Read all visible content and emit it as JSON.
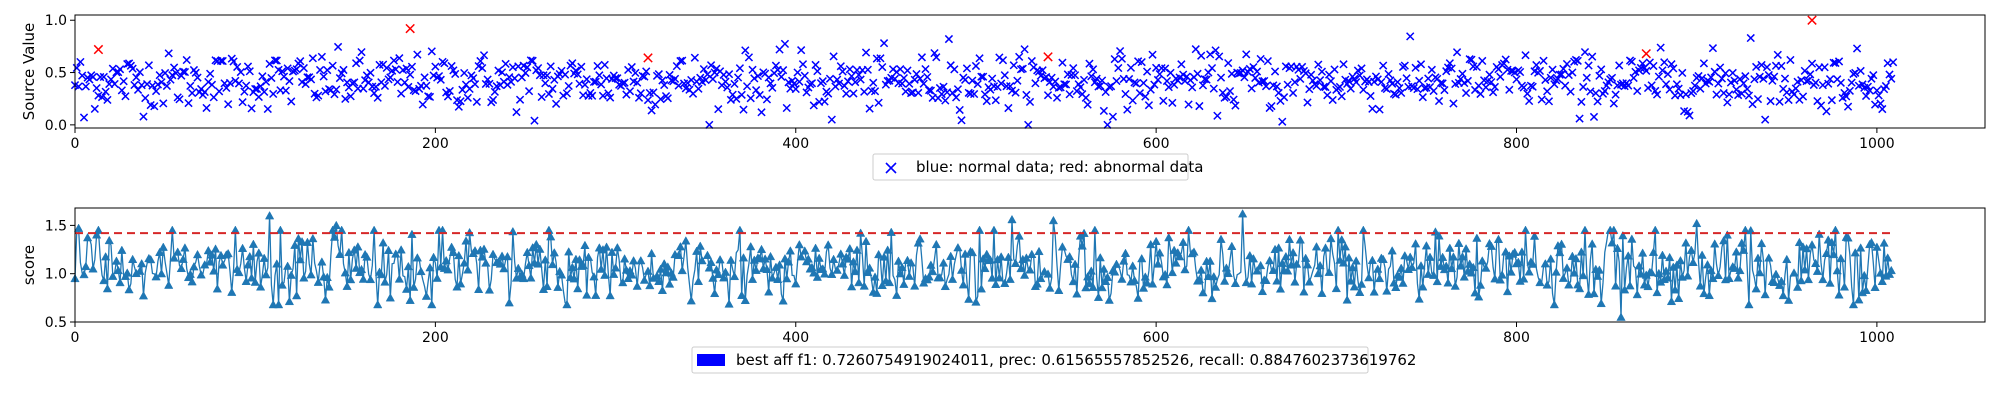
{
  "chart_data": [
    {
      "type": "scatter",
      "title": "",
      "xlabel": "",
      "ylabel": "Source Value",
      "xlim": [
        0,
        1060
      ],
      "ylim": [
        -0.03,
        1.05
      ],
      "xticks": [
        0,
        200,
        400,
        600,
        800,
        1000
      ],
      "yticks": [
        0.0,
        0.5,
        1.0
      ],
      "xtick_labels": [
        "0",
        "200",
        "400",
        "600",
        "800",
        "1000"
      ],
      "ytick_labels": [
        "0.0",
        "0.5",
        "1.0"
      ],
      "grid": false,
      "legend": {
        "placement": "bottom-center",
        "entry": "blue: normal data; red: abnormal data"
      },
      "series": [
        {
          "color": "#0000ff",
          "marker": "x",
          "n_points": 1010,
          "x_range": [
            0,
            1009
          ],
          "y_mean": 0.42,
          "y_spread": 0.13,
          "extremes": [
            [
              5,
              0.07
            ],
            [
              255,
              0.04
            ],
            [
              420,
              0.05
            ],
            [
              573,
              0.0
            ],
            [
              670,
              0.03
            ],
            [
              835,
              0.06
            ],
            [
              485,
              0.82
            ],
            [
              930,
              0.83
            ]
          ]
        },
        {
          "color": "#ff0000",
          "marker": "x",
          "points": [
            [
              13,
              0.72
            ],
            [
              186,
              0.92
            ],
            [
              318,
              0.64
            ],
            [
              540,
              0.65
            ],
            [
              872,
              0.68
            ],
            [
              964,
              1.0
            ]
          ]
        }
      ]
    },
    {
      "type": "line",
      "title": "",
      "xlabel": "",
      "ylabel": "score",
      "xlim": [
        0,
        1060
      ],
      "ylim": [
        0.5,
        1.68
      ],
      "xticks": [
        0,
        200,
        400,
        600,
        800,
        1000
      ],
      "yticks": [
        0.5,
        1.0,
        1.5
      ],
      "xtick_labels": [
        "0",
        "200",
        "400",
        "600",
        "800",
        "1000"
      ],
      "ytick_labels": [
        "0.5",
        "1.0",
        "1.5"
      ],
      "grid": false,
      "threshold": {
        "value": 1.42,
        "color": "#d62728",
        "style": "dashed"
      },
      "legend": {
        "placement": "bottom-center",
        "entry": "best aff f1: 0.7260754919024011, prec: 0.61565557852526, recall: 0.8847602373619762",
        "patch_color": "#0000ff"
      },
      "series": [
        {
          "color": "#1f77b4",
          "marker": "triangle-up",
          "n_points": 1010,
          "x_range": [
            0,
            1009
          ],
          "y_mean": 1.05,
          "y_spread": 0.16,
          "peaks": [
            [
              2,
              1.47
            ],
            [
              108,
              1.6
            ],
            [
              145,
              1.5
            ],
            [
              520,
              1.56
            ],
            [
              543,
              1.55
            ],
            [
              648,
              1.62
            ],
            [
              900,
              1.52
            ]
          ],
          "dips": [
            [
              342,
              0.72
            ],
            [
              858,
              0.55
            ],
            [
              990,
              0.73
            ]
          ]
        }
      ]
    }
  ]
}
